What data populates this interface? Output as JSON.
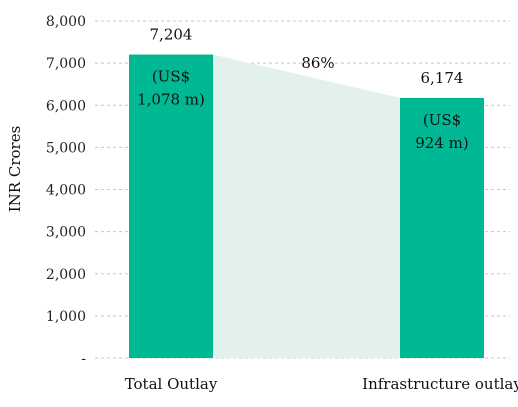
{
  "chart_data": {
    "type": "bar",
    "categories": [
      "Total Outlay",
      "Infrastructure outlay"
    ],
    "values": [
      7204,
      6174
    ],
    "value_labels": [
      "7,204",
      "6,174"
    ],
    "usd_labels": [
      [
        "(US$",
        "1,078 m)"
      ],
      [
        "(US$",
        "924 m)"
      ]
    ],
    "share_label": "86%",
    "ylabel": "INR Crores",
    "xlabel": "",
    "ylim": [
      0,
      8000
    ],
    "yticks": [
      0,
      1000,
      2000,
      3000,
      4000,
      5000,
      6000,
      7000,
      8000
    ],
    "ytick_labels": [
      "-",
      "1,000",
      "2,000",
      "3,000",
      "4,000",
      "5,000",
      "6,000",
      "7,000",
      "8,000"
    ],
    "grid": "horizontal dashed",
    "legend": "none",
    "colors": {
      "bar": "#00B894",
      "connector": "#E3F1EC",
      "grid": "#C8C8C8",
      "text": "#111111"
    }
  }
}
